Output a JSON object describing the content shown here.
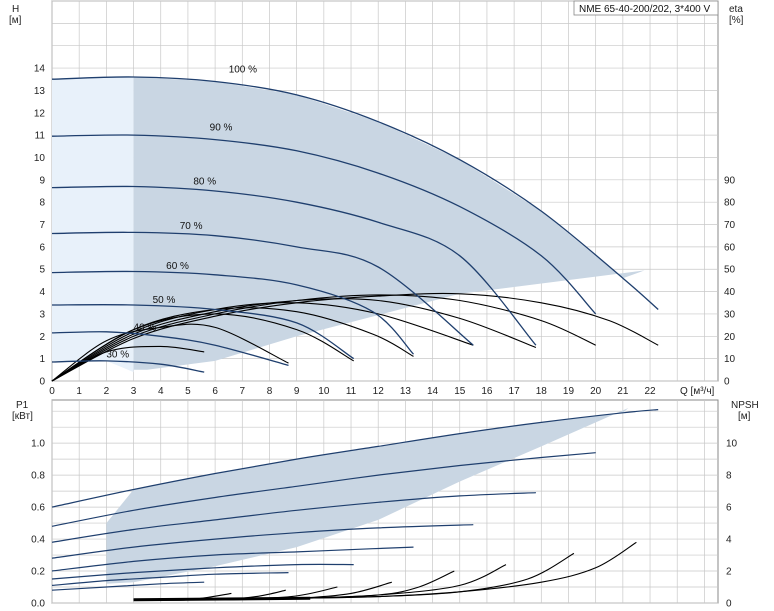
{
  "header": {
    "model": "NME 65-40-200/202, 3*400 V"
  },
  "colors": {
    "grid": "#c8c8c8",
    "area": "#c9d6e3",
    "area_light": "#e8f1fa",
    "curve": "#1f3f6e",
    "black": "#000000",
    "axis": "#888888"
  },
  "chart_data": [
    {
      "type": "line",
      "id": "head-efficiency",
      "x_label": "Q [м³/ч]",
      "y_left_label": [
        "H",
        "[м]"
      ],
      "y_right_label": [
        "eta",
        "[%]"
      ],
      "x_ticks": [
        "0",
        "1",
        "2",
        "3",
        "4",
        "5",
        "6",
        "7",
        "8",
        "9",
        "10",
        "11",
        "12",
        "13",
        "14",
        "15",
        "16",
        "17",
        "18",
        "19",
        "20",
        "21",
        "22"
      ],
      "y_left_ticks": [
        "0",
        "1",
        "2",
        "3",
        "4",
        "5",
        "6",
        "7",
        "8",
        "9",
        "10",
        "11",
        "12",
        "13",
        "14"
      ],
      "y_right_ticks": [
        "0",
        "10",
        "20",
        "30",
        "40",
        "50",
        "60",
        "70",
        "80",
        "90"
      ],
      "xlim": [
        0,
        24
      ],
      "ylim": [
        0,
        17
      ],
      "speed_labels": [
        "100 %",
        "90 %",
        "80 %",
        "70 %",
        "60 %",
        "50 %",
        "40 %",
        "30 %"
      ],
      "series": [
        {
          "name": "100 %",
          "label_x": 6.5,
          "label_y": 13.8,
          "x": [
            0,
            3,
            6,
            9,
            12,
            15,
            18,
            21,
            22.3
          ],
          "y": [
            13.5,
            13.6,
            13.4,
            12.8,
            11.6,
            9.9,
            7.6,
            4.6,
            3.2
          ]
        },
        {
          "name": "90 %",
          "label_x": 5.8,
          "label_y": 11.2,
          "x": [
            0,
            3,
            6,
            9,
            12,
            15,
            18,
            20.0
          ],
          "y": [
            10.95,
            11.0,
            10.8,
            10.3,
            9.3,
            7.8,
            5.6,
            3.0
          ]
        },
        {
          "name": "80 %",
          "label_x": 5.2,
          "label_y": 8.8,
          "x": [
            0,
            3,
            6,
            9,
            12,
            15,
            17.8
          ],
          "y": [
            8.65,
            8.7,
            8.5,
            8.0,
            7.1,
            5.6,
            1.6
          ]
        },
        {
          "name": "70 %",
          "label_x": 4.7,
          "label_y": 6.8,
          "x": [
            0,
            3,
            6,
            9,
            12,
            15.5
          ],
          "y": [
            6.6,
            6.65,
            6.5,
            6.0,
            5.1,
            1.6
          ]
        },
        {
          "name": "60 %",
          "label_x": 4.2,
          "label_y": 5.0,
          "x": [
            0,
            3,
            6,
            9,
            11.8,
            13.3
          ],
          "y": [
            4.85,
            4.9,
            4.75,
            4.3,
            3.1,
            1.2
          ]
        },
        {
          "name": "50 %",
          "label_x": 3.7,
          "label_y": 3.5,
          "x": [
            0,
            3,
            6,
            9,
            11.1
          ],
          "y": [
            3.4,
            3.4,
            3.2,
            2.6,
            1.0
          ]
        },
        {
          "name": "40 %",
          "label_x": 3.0,
          "label_y": 2.25,
          "x": [
            0,
            2,
            4,
            6,
            8.7
          ],
          "y": [
            2.15,
            2.2,
            2.0,
            1.6,
            0.7
          ]
        },
        {
          "name": "30 %",
          "label_x": 2.0,
          "label_y": 1.05,
          "x": [
            0,
            2,
            4,
            5.6
          ],
          "y": [
            0.85,
            0.9,
            0.75,
            0.4
          ]
        }
      ],
      "efficiency_series": [
        {
          "x": [
            0,
            3,
            6,
            9,
            12,
            15,
            18,
            20.5,
            22.3
          ],
          "y": [
            0,
            1.9,
            2.9,
            3.5,
            3.8,
            3.9,
            3.5,
            2.7,
            1.6
          ]
        },
        {
          "x": [
            0,
            3,
            6,
            9,
            12,
            15,
            18,
            20.0
          ],
          "y": [
            0,
            2.0,
            3.0,
            3.6,
            3.85,
            3.6,
            2.7,
            1.6
          ]
        },
        {
          "x": [
            0,
            3,
            6,
            9,
            12,
            15,
            17.8
          ],
          "y": [
            0,
            2.1,
            3.1,
            3.6,
            3.6,
            2.8,
            1.5
          ]
        },
        {
          "x": [
            0,
            3,
            6,
            9,
            12,
            15.5
          ],
          "y": [
            0,
            2.2,
            3.2,
            3.5,
            3.0,
            1.6
          ]
        },
        {
          "x": [
            0,
            3,
            6,
            9,
            11.8,
            13.3
          ],
          "y": [
            0,
            2.3,
            3.2,
            3.1,
            2.1,
            1.1
          ]
        },
        {
          "x": [
            0,
            3,
            6,
            9,
            11.1
          ],
          "y": [
            0,
            2.3,
            3.0,
            2.3,
            0.9
          ]
        },
        {
          "x": [
            0,
            2,
            4,
            6,
            8.7
          ],
          "y": [
            0,
            1.8,
            2.4,
            2.4,
            0.8
          ]
        },
        {
          "x": [
            0,
            2,
            4,
            5.6
          ],
          "y": [
            0,
            1.3,
            1.55,
            1.3
          ]
        }
      ],
      "shaded_region": [
        [
          3.0,
          13.6
        ],
        [
          6,
          13.4
        ],
        [
          9,
          12.8
        ],
        [
          12,
          11.6
        ],
        [
          15,
          9.9
        ],
        [
          18,
          7.6
        ],
        [
          21,
          4.6
        ],
        [
          21.8,
          4.95
        ],
        [
          15,
          3.9
        ],
        [
          9,
          2.0
        ],
        [
          6,
          0.9
        ],
        [
          3.5,
          0.5
        ],
        [
          3.0,
          0.5
        ]
      ],
      "light_region": [
        [
          0,
          13.5
        ],
        [
          3.0,
          13.6
        ],
        [
          3.0,
          0.4
        ],
        [
          2.0,
          0.9
        ],
        [
          0,
          0.9
        ]
      ]
    },
    {
      "type": "line",
      "id": "power-npsh",
      "x_label": "",
      "y_left_label": [
        "P1",
        "[кВт]"
      ],
      "y_right_label": [
        "NPSH",
        "[м]"
      ],
      "y_left_ticks": [
        "0.0",
        "0.2",
        "0.4",
        "0.6",
        "0.8",
        "1.0"
      ],
      "y_right_ticks": [
        "0",
        "2",
        "4",
        "6",
        "8",
        "10"
      ],
      "xlim": [
        0,
        24
      ],
      "ylim": [
        0,
        1.27
      ],
      "power_series": [
        {
          "x": [
            0,
            3,
            6,
            9,
            12,
            15,
            18,
            21,
            22.3
          ],
          "y": [
            0.6,
            0.71,
            0.81,
            0.9,
            0.98,
            1.06,
            1.13,
            1.19,
            1.21
          ]
        },
        {
          "x": [
            0,
            3,
            6,
            9,
            12,
            15,
            18,
            20.0
          ],
          "y": [
            0.48,
            0.58,
            0.66,
            0.73,
            0.8,
            0.86,
            0.91,
            0.94
          ]
        },
        {
          "x": [
            0,
            3,
            6,
            9,
            12,
            15,
            17.8
          ],
          "y": [
            0.38,
            0.46,
            0.52,
            0.58,
            0.63,
            0.67,
            0.69
          ]
        },
        {
          "x": [
            0,
            3,
            6,
            9,
            12,
            15.5
          ],
          "y": [
            0.28,
            0.35,
            0.4,
            0.44,
            0.47,
            0.49
          ]
        },
        {
          "x": [
            0,
            3,
            6,
            9,
            11.8,
            13.3
          ],
          "y": [
            0.2,
            0.26,
            0.3,
            0.32,
            0.34,
            0.35
          ]
        },
        {
          "x": [
            0,
            3,
            6,
            9,
            11.1
          ],
          "y": [
            0.15,
            0.19,
            0.22,
            0.24,
            0.24
          ]
        },
        {
          "x": [
            0,
            2,
            4,
            6,
            8.7
          ],
          "y": [
            0.11,
            0.14,
            0.16,
            0.18,
            0.19
          ]
        },
        {
          "x": [
            0,
            2,
            4,
            5.6
          ],
          "y": [
            0.08,
            0.1,
            0.12,
            0.13
          ]
        }
      ],
      "npsh_series": [
        {
          "x": [
            3,
            6,
            9,
            12,
            15,
            18,
            20,
            21.5
          ],
          "y": [
            0.02,
            0.02,
            0.03,
            0.04,
            0.07,
            0.13,
            0.22,
            0.38
          ]
        },
        {
          "x": [
            3,
            6,
            9,
            12,
            15,
            17.5,
            19.2
          ],
          "y": [
            0.02,
            0.02,
            0.03,
            0.04,
            0.07,
            0.15,
            0.31
          ]
        },
        {
          "x": [
            3,
            6,
            9,
            12,
            15,
            16.7
          ],
          "y": [
            0.02,
            0.02,
            0.03,
            0.05,
            0.11,
            0.24
          ]
        },
        {
          "x": [
            3,
            6,
            9,
            12,
            13.5,
            14.8
          ],
          "y": [
            0.02,
            0.02,
            0.03,
            0.05,
            0.1,
            0.2
          ]
        },
        {
          "x": [
            3,
            6,
            9,
            11,
            12.5
          ],
          "y": [
            0.02,
            0.02,
            0.03,
            0.06,
            0.13
          ]
        },
        {
          "x": [
            3,
            6,
            8.8,
            10.5
          ],
          "y": [
            0.02,
            0.02,
            0.04,
            0.1
          ]
        },
        {
          "x": [
            3,
            6,
            7.5,
            8.6
          ],
          "y": [
            0.02,
            0.02,
            0.04,
            0.08
          ]
        },
        {
          "x": [
            3,
            5,
            6.6
          ],
          "y": [
            0.02,
            0.02,
            0.06
          ]
        }
      ],
      "shaded_region": [
        [
          2.0,
          0.5
        ],
        [
          3,
          0.71
        ],
        [
          6,
          0.81
        ],
        [
          9,
          0.9
        ],
        [
          12,
          0.98
        ],
        [
          15,
          1.06
        ],
        [
          18,
          1.13
        ],
        [
          21,
          1.19
        ],
        [
          21.2,
          1.22
        ],
        [
          18,
          0.98
        ],
        [
          15,
          0.76
        ],
        [
          12,
          0.52
        ],
        [
          9,
          0.35
        ],
        [
          6,
          0.23
        ],
        [
          3,
          0.13
        ],
        [
          2.0,
          0.12
        ]
      ]
    }
  ]
}
